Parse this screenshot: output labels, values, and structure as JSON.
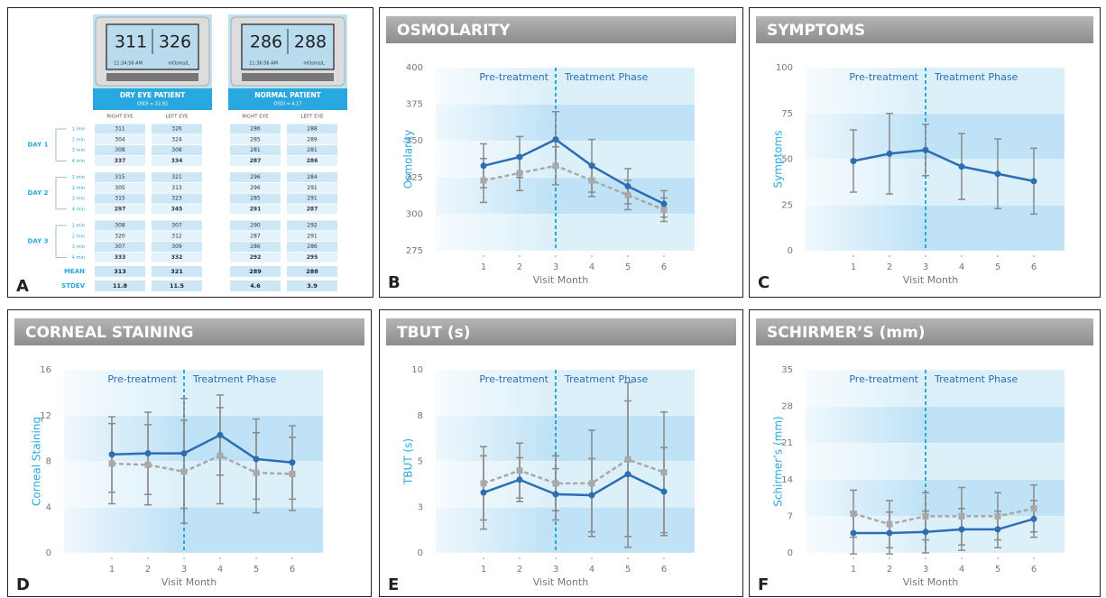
{
  "panel_a": {
    "label": "A",
    "devices": [
      {
        "readings": [
          311,
          326
        ],
        "time": "11:34:56 AM",
        "unit": "mOsms/L",
        "title": "DRY EYE PATIENT",
        "subtitle": "OSDI = 22.92"
      },
      {
        "readings": [
          286,
          288
        ],
        "time": "11:36:56 AM",
        "unit": "mOsms/L",
        "title": "NORMAL PATIENT",
        "subtitle": "OSDI = 4.17"
      }
    ],
    "column_headers": [
      "RIGHT EYE",
      "LEFT EYE",
      "RIGHT EYE",
      "LEFT EYE"
    ],
    "days": [
      {
        "label": "DAY 1",
        "rows": [
          {
            "time": "1 min",
            "cells": [
              311,
              326,
              286,
              288
            ]
          },
          {
            "time": "2 min",
            "cells": [
              304,
              324,
              285,
              289
            ]
          },
          {
            "time": "3 min",
            "cells": [
              308,
              308,
              281,
              281
            ]
          },
          {
            "time": "4 min",
            "cells": [
              337,
              334,
              287,
              286
            ]
          }
        ]
      },
      {
        "label": "DAY 2",
        "rows": [
          {
            "time": "1 min",
            "cells": [
              315,
              321,
              296,
              284
            ]
          },
          {
            "time": "2 min",
            "cells": [
              305,
              313,
              296,
              291
            ]
          },
          {
            "time": "3 min",
            "cells": [
              315,
              323,
              285,
              291
            ]
          },
          {
            "time": "4 min",
            "cells": [
              297,
              345,
              291,
              287
            ]
          }
        ]
      },
      {
        "label": "DAY 3",
        "rows": [
          {
            "time": "1 min",
            "cells": [
              308,
              307,
              290,
              292
            ]
          },
          {
            "time": "2 min",
            "cells": [
              320,
              312,
              287,
              291
            ]
          },
          {
            "time": "3 min",
            "cells": [
              307,
              309,
              286,
              286
            ]
          },
          {
            "time": "4 min",
            "cells": [
              333,
              332,
              292,
              295
            ]
          }
        ]
      }
    ],
    "summary": [
      {
        "label": "MEAN",
        "cells": [
          313,
          321,
          289,
          288
        ]
      },
      {
        "label": "STDEV",
        "cells": [
          11.8,
          11.5,
          4.6,
          3.9
        ]
      }
    ]
  },
  "chart_data": [
    {
      "type": "line",
      "label": "B",
      "title": "OSMOLARITY",
      "ylabel": "Osmolarity",
      "xlabel": "Visit Month",
      "annotations": [
        "Pre-treatment",
        "Treatment Phase"
      ],
      "categories": [
        "1",
        "2",
        "3",
        "4",
        "5",
        "6"
      ],
      "ylim": [
        275,
        400
      ],
      "yticks": [
        275,
        300,
        325,
        350,
        375,
        400
      ],
      "grid": true,
      "series": [
        {
          "color": "#a8a8a8",
          "style": "dashed",
          "values": [
            323,
            328,
            333,
            323,
            313,
            303
          ],
          "errors": [
            15,
            12,
            13,
            11,
            10,
            8
          ]
        },
        {
          "color": "#2c6db3",
          "style": "solid",
          "values": [
            333,
            339,
            351,
            333,
            319,
            307
          ],
          "errors": [
            15,
            14,
            19,
            18,
            12,
            9
          ]
        }
      ]
    },
    {
      "type": "line",
      "label": "C",
      "title": "SYMPTOMS",
      "ylabel": "Symptoms",
      "xlabel": "Visit Month",
      "annotations": [
        "Pre-treatment",
        "Treatment Phase"
      ],
      "categories": [
        "1",
        "2",
        "3",
        "4",
        "5",
        "6"
      ],
      "ylim": [
        0,
        100
      ],
      "yticks": [
        0,
        25,
        50,
        75,
        100
      ],
      "grid": true,
      "series": [
        {
          "color": "#2c6db3",
          "style": "solid",
          "values": [
            49,
            53,
            55,
            46,
            42,
            38
          ],
          "errors": [
            17,
            22,
            14,
            18,
            19,
            18
          ]
        }
      ]
    },
    {
      "type": "line",
      "label": "D",
      "title": "CORNEAL STAINING",
      "ylabel": "Corneal Staining",
      "xlabel": "Visit Month",
      "annotations": [
        "Pre-treatment",
        "Treatment Phase"
      ],
      "categories": [
        "1",
        "2",
        "3",
        "4",
        "5",
        "6"
      ],
      "ylim": [
        0,
        16
      ],
      "yticks": [
        0,
        4,
        8,
        12,
        16
      ],
      "grid": true,
      "series": [
        {
          "color": "#a8a8a8",
          "style": "dashed",
          "values": [
            7.8,
            7.7,
            7.1,
            8.5,
            7.0,
            6.9
          ],
          "errors": [
            3.5,
            3.5,
            4.5,
            4.2,
            3.5,
            3.2
          ]
        },
        {
          "color": "#2c6db3",
          "style": "solid",
          "values": [
            8.6,
            8.7,
            8.7,
            10.3,
            8.2,
            7.9
          ],
          "errors": [
            3.3,
            3.6,
            4.8,
            3.5,
            3.5,
            3.2
          ]
        }
      ]
    },
    {
      "type": "line",
      "label": "E",
      "title": "TBUT (s)",
      "ylabel": "TBUT (s)",
      "xlabel": "Visit Month",
      "annotations": [
        "Pre-treatment",
        "Treatment Phase"
      ],
      "categories": [
        "1",
        "2",
        "3",
        "4",
        "5",
        "6"
      ],
      "ylim": [
        0,
        10
      ],
      "yticks": [
        0,
        {
          "value": 2.5,
          "label": "3"
        },
        5,
        {
          "value": 7.5,
          "label": "8"
        },
        10
      ],
      "grid": true,
      "series": [
        {
          "color": "#a8a8a8",
          "style": "dashed",
          "values": [
            3.8,
            4.5,
            3.8,
            3.8,
            5.1,
            4.4
          ],
          "errors": [
            2.0,
            1.5,
            1.5,
            2.9,
            4.2,
            3.3
          ]
        },
        {
          "color": "#2c6db3",
          "style": "solid",
          "values": [
            3.3,
            4.0,
            3.2,
            3.15,
            4.3,
            3.35
          ],
          "errors": [
            2.0,
            1.2,
            1.4,
            2.0,
            4.0,
            2.4
          ]
        }
      ]
    },
    {
      "type": "line",
      "label": "F",
      "title": "SCHIRMER’S (mm)",
      "ylabel": "Schirmer’s (mm)",
      "xlabel": "Visit Month",
      "annotations": [
        "Pre-treatment",
        "Treatment Phase"
      ],
      "categories": [
        "1",
        "2",
        "3",
        "4",
        "5",
        "6"
      ],
      "ylim": [
        0,
        35
      ],
      "yticks": [
        0,
        7,
        14,
        21,
        28,
        35
      ],
      "grid": true,
      "series": [
        {
          "color": "#a8a8a8",
          "style": "dashed",
          "values": [
            7.5,
            5.5,
            7.0,
            7.0,
            7.0,
            8.5
          ],
          "errors": [
            4.5,
            4.5,
            4.5,
            5.5,
            4.5,
            4.5
          ]
        },
        {
          "color": "#2c6db3",
          "style": "solid",
          "values": [
            3.8,
            3.8,
            4.0,
            4.5,
            4.5,
            6.5
          ],
          "errors": [
            4.0,
            4.0,
            4.0,
            4.0,
            3.5,
            3.5
          ]
        }
      ]
    }
  ]
}
